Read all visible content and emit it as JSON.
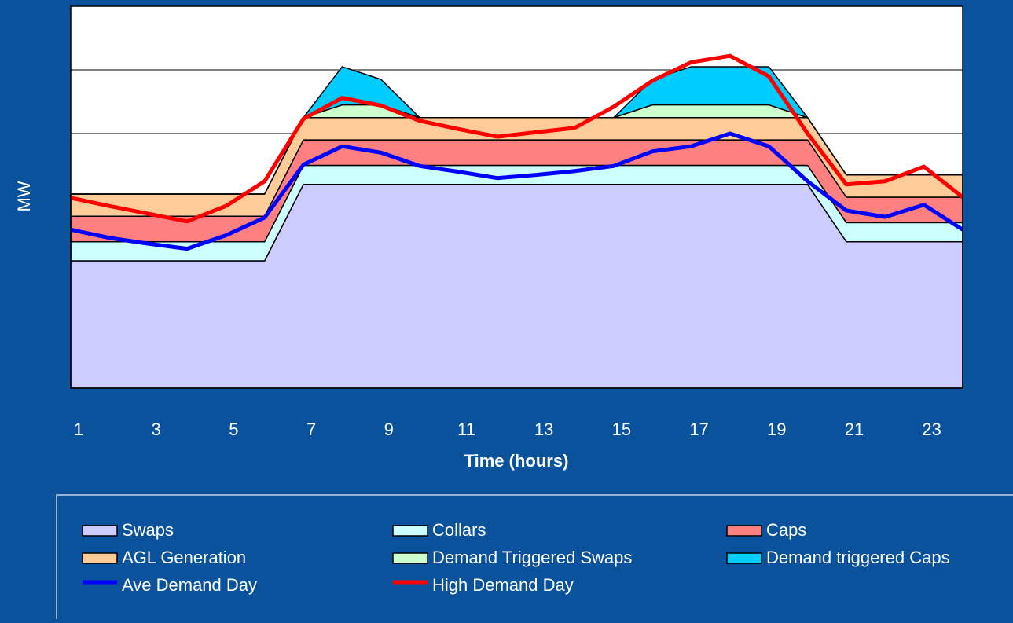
{
  "chart_data": {
    "type": "area",
    "xlabel": "Time (hours)",
    "ylabel": "MW",
    "categories": [
      1,
      null,
      3,
      null,
      5,
      null,
      7,
      null,
      9,
      null,
      11,
      null,
      13,
      null,
      15,
      null,
      17,
      null,
      19,
      null,
      21,
      null,
      23,
      null
    ],
    "ylim": [
      0,
      600
    ],
    "yticks": [
      0,
      100,
      200,
      300,
      400,
      500,
      600
    ],
    "grid": true,
    "stacked": true,
    "legend": "bottom",
    "series": [
      {
        "name": "Swaps",
        "color": "#ccccff",
        "type": "area",
        "values": [
          200,
          200,
          200,
          200,
          200,
          200,
          320,
          320,
          320,
          320,
          320,
          320,
          320,
          320,
          320,
          320,
          320,
          320,
          320,
          320,
          230,
          230,
          230,
          230
        ]
      },
      {
        "name": "Collars",
        "color": "#ccffff",
        "type": "area",
        "values": [
          30,
          30,
          30,
          30,
          30,
          30,
          30,
          30,
          30,
          30,
          30,
          30,
          30,
          30,
          30,
          30,
          30,
          30,
          30,
          30,
          30,
          30,
          30,
          30
        ]
      },
      {
        "name": "Caps",
        "color": "#ff8080",
        "type": "area",
        "values": [
          40,
          40,
          40,
          40,
          40,
          40,
          40,
          40,
          40,
          40,
          40,
          40,
          40,
          40,
          40,
          40,
          40,
          40,
          40,
          40,
          40,
          40,
          40,
          40
        ]
      },
      {
        "name": "AGL Generation",
        "color": "#ffcc99",
        "type": "area",
        "values": [
          35,
          35,
          35,
          35,
          35,
          35,
          35,
          35,
          35,
          35,
          35,
          35,
          35,
          35,
          35,
          35,
          35,
          35,
          35,
          35,
          35,
          35,
          35,
          35
        ]
      },
      {
        "name": "Demand Triggered Swaps",
        "color": "#ccffcc",
        "type": "area",
        "values": [
          0,
          0,
          0,
          0,
          0,
          0,
          0,
          20,
          20,
          0,
          0,
          0,
          0,
          0,
          0,
          20,
          20,
          20,
          20,
          0,
          0,
          0,
          0,
          0
        ]
      },
      {
        "name": "Demand triggered Caps",
        "color": "#00ccff",
        "type": "area",
        "values": [
          0,
          0,
          0,
          0,
          0,
          0,
          0,
          60,
          40,
          0,
          0,
          0,
          0,
          0,
          0,
          40,
          60,
          60,
          60,
          0,
          0,
          0,
          0,
          0
        ]
      },
      {
        "name": "Ave Demand Day",
        "color": "#0000ff",
        "type": "line",
        "values": [
          249,
          236,
          227,
          219,
          240,
          268,
          351,
          380,
          370,
          349,
          340,
          330,
          335,
          341,
          349,
          372,
          380,
          400,
          380,
          325,
          279,
          269,
          288,
          249
        ]
      },
      {
        "name": "High Demand Day",
        "color": "#ff0000",
        "type": "line",
        "values": [
          299,
          286,
          274,
          262,
          286,
          325,
          423,
          456,
          444,
          420,
          407,
          395,
          402,
          409,
          442,
          483,
          512,
          522,
          490,
          400,
          320,
          325,
          348,
          300
        ]
      }
    ]
  }
}
